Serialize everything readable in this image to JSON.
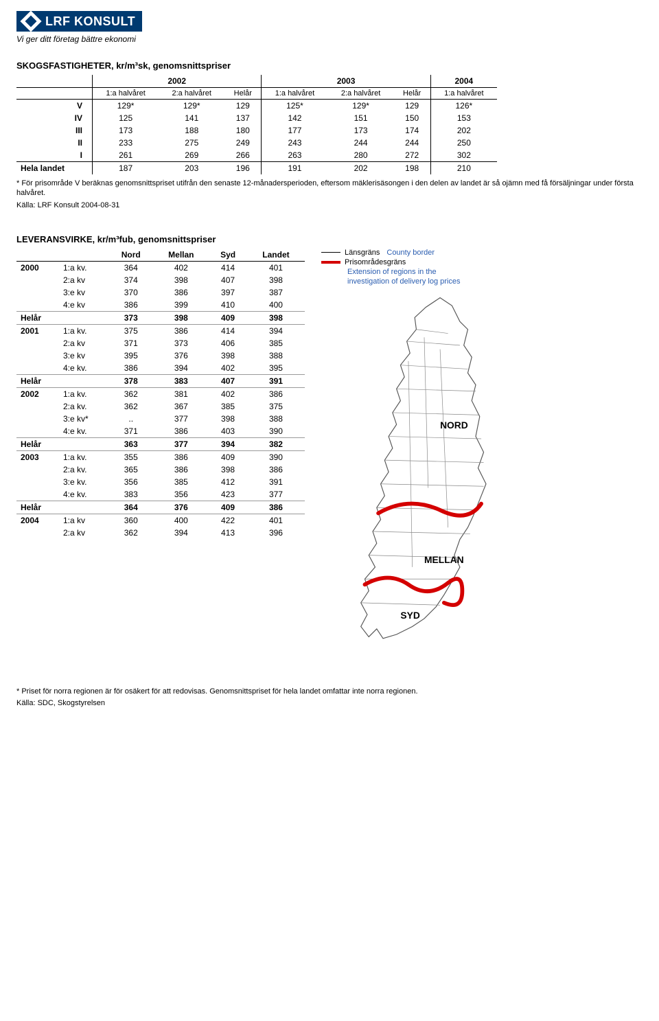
{
  "logo": {
    "text": "LRF KONSULT",
    "tagline": "Vi ger ditt företag bättre ekonomi"
  },
  "table1": {
    "title_html": "S<span class='smallcap'>KOGSFASTIGHETER</span>, kr/m³sk, genomsnittspriser",
    "years": [
      "2002",
      "2003",
      "2004"
    ],
    "subheaders": [
      "1:a halvåret",
      "2:a halvåret",
      "Helår",
      "1:a halvåret",
      "2:a halvåret",
      "Helår",
      "1:a halvåret"
    ],
    "rows": [
      {
        "label": "V",
        "vals": [
          "129*",
          "129*",
          "129",
          "125*",
          "129*",
          "129",
          "126*"
        ]
      },
      {
        "label": "IV",
        "vals": [
          "125",
          "141",
          "137",
          "142",
          "151",
          "150",
          "153"
        ]
      },
      {
        "label": "III",
        "vals": [
          "173",
          "188",
          "180",
          "177",
          "173",
          "174",
          "202"
        ]
      },
      {
        "label": "II",
        "vals": [
          "233",
          "275",
          "249",
          "243",
          "244",
          "244",
          "250"
        ]
      },
      {
        "label": "I",
        "vals": [
          "261",
          "269",
          "266",
          "263",
          "280",
          "272",
          "302"
        ]
      }
    ],
    "total": {
      "label": "Hela landet",
      "vals": [
        "187",
        "203",
        "196",
        "191",
        "202",
        "198",
        "210"
      ]
    },
    "footnote": "* För prisområde V beräknas genomsnittspriset utifrån den senaste 12-månadersperioden, eftersom mäklerisäsongen i den delen av landet är så ojämn med få försäljningar under första halvåret.",
    "source": "Källa: LRF Konsult 2004-08-31"
  },
  "table2": {
    "title_html": "L<span class='smallcap'>EVERANSVIRKE</span>, kr/m³fub, genomsnittspriser",
    "headers": [
      "Nord",
      "Mellan",
      "Syd",
      "Landet"
    ],
    "blocks": [
      {
        "year": "2000",
        "rows": [
          {
            "q": "1:a kv.",
            "v": [
              "364",
              "402",
              "414",
              "401"
            ]
          },
          {
            "q": "2:a kv",
            "v": [
              "374",
              "398",
              "407",
              "398"
            ]
          },
          {
            "q": "3:e kv",
            "v": [
              "370",
              "386",
              "397",
              "387"
            ]
          },
          {
            "q": "4:e kv",
            "v": [
              "386",
              "399",
              "410",
              "400"
            ]
          }
        ],
        "helar": [
          "373",
          "398",
          "409",
          "398"
        ]
      },
      {
        "year": "2001",
        "rows": [
          {
            "q": "1:a kv.",
            "v": [
              "375",
              "386",
              "414",
              "394"
            ]
          },
          {
            "q": "2:a kv",
            "v": [
              "371",
              "373",
              "406",
              "385"
            ]
          },
          {
            "q": "3:e kv",
            "v": [
              "395",
              "376",
              "398",
              "388"
            ]
          },
          {
            "q": "4:e kv.",
            "v": [
              "386",
              "394",
              "402",
              "395"
            ]
          }
        ],
        "helar": [
          "378",
          "383",
          "407",
          "391"
        ]
      },
      {
        "year": "2002",
        "rows": [
          {
            "q": "1:a kv.",
            "v": [
              "362",
              "381",
              "402",
              "386"
            ]
          },
          {
            "q": "2:a kv.",
            "v": [
              "362",
              "367",
              "385",
              "375"
            ]
          },
          {
            "q": "3:e kv*",
            "v": [
              "..",
              "377",
              "398",
              "388"
            ]
          },
          {
            "q": "4:e kv.",
            "v": [
              "371",
              "386",
              "403",
              "390"
            ]
          }
        ],
        "helar": [
          "363",
          "377",
          "394",
          "382"
        ]
      },
      {
        "year": "2003",
        "rows": [
          {
            "q": "1:a kv.",
            "v": [
              "355",
              "386",
              "409",
              "390"
            ]
          },
          {
            "q": "2:a kv.",
            "v": [
              "365",
              "386",
              "398",
              "386"
            ]
          },
          {
            "q": "3:e kv.",
            "v": [
              "356",
              "385",
              "412",
              "391"
            ]
          },
          {
            "q": "4:e kv.",
            "v": [
              "383",
              "356",
              "423",
              "377"
            ]
          }
        ],
        "helar": [
          "364",
          "376",
          "409",
          "386"
        ]
      },
      {
        "year": "2004",
        "rows": [
          {
            "q": "1:a kv",
            "v": [
              "360",
              "400",
              "422",
              "401"
            ]
          },
          {
            "q": "2:a kv",
            "v": [
              "362",
              "394",
              "413",
              "396"
            ]
          }
        ]
      }
    ],
    "footnote": "* Priset för norra regionen är för osäkert för att redovisas. Genomsnittspriset för hela landet omfattar inte norra regionen.",
    "source": "Källa: SDC, Skogstyrelsen"
  },
  "legend": {
    "lansgrans": "Länsgräns",
    "lansgrans_en": "County border",
    "prisomrade": "Prisområdesgräns",
    "ext1": "Extension of regions in the",
    "ext2": "investigation of delivery log prices"
  },
  "map_labels": {
    "nord": "NORD",
    "mellan": "MELLAN",
    "syd": "SYD"
  },
  "colors": {
    "brand": "#003a70",
    "region_line": "#d40000",
    "link_blue": "#2a5db0"
  }
}
